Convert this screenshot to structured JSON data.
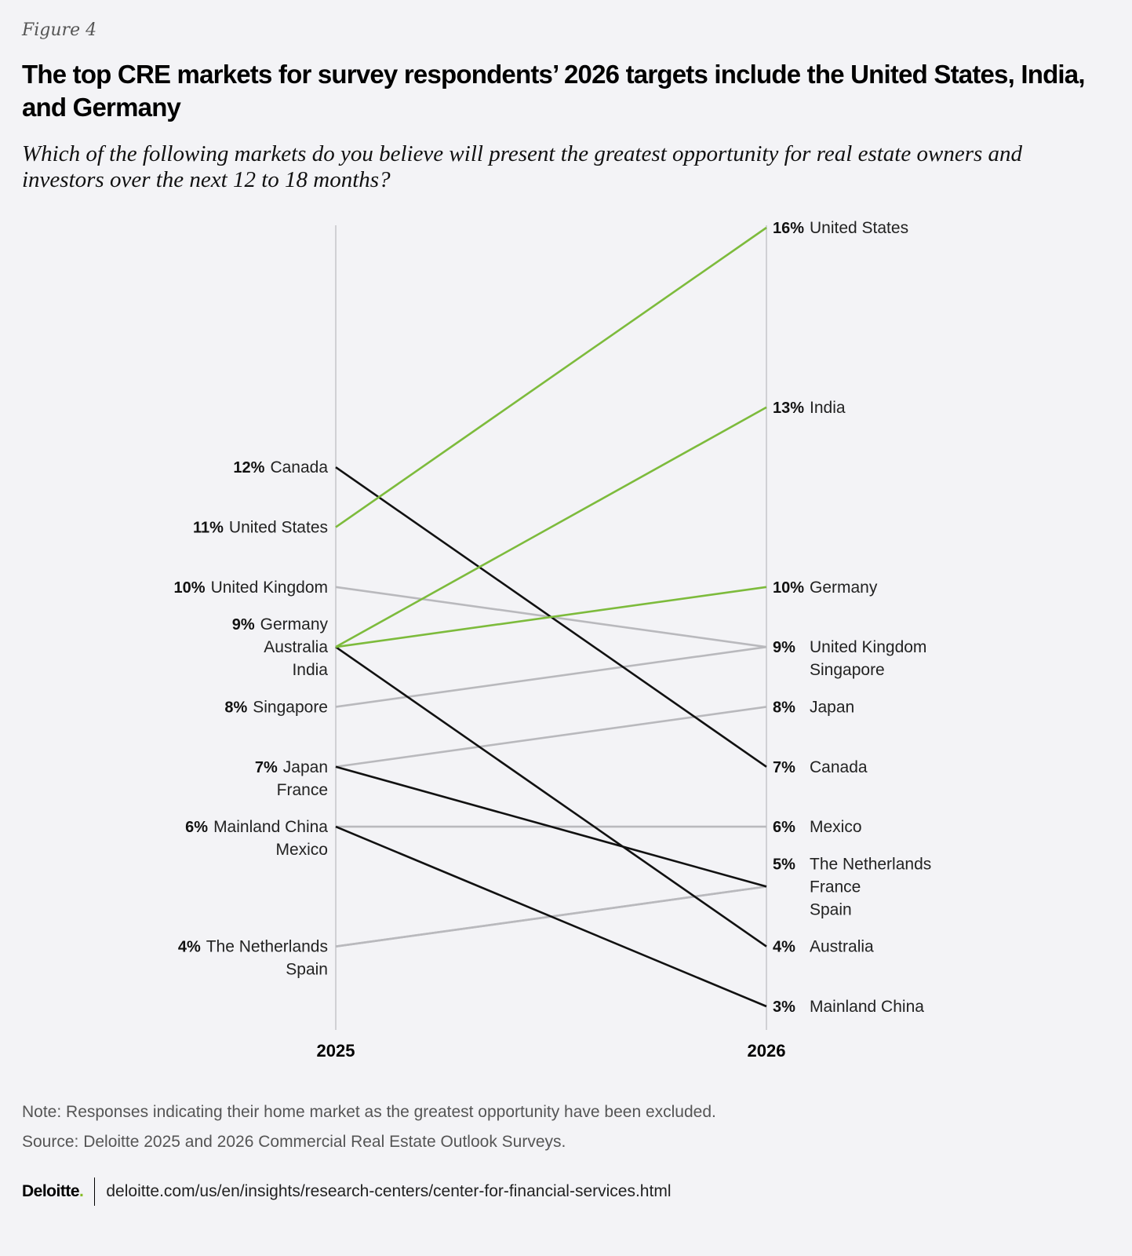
{
  "figure_label": "Figure 4",
  "title": "The top CRE markets for survey respondents’ 2026 targets include the United States, India, and Germany",
  "subtitle": "Which of the following markets do you believe will present the greatest opportunity for real estate owners and investors over the next 12 to 18 months?",
  "chart_data": {
    "type": "slope",
    "x": [
      "2025",
      "2026"
    ],
    "ylim": [
      3,
      16
    ],
    "unit": "%",
    "colors": {
      "highlight": "#7dbb3c",
      "decline": "#111111",
      "other": "#b9b9bd",
      "axis": "#c4c4c8"
    },
    "series": [
      {
        "name": "United States",
        "values": [
          11,
          16
        ],
        "color_group": "highlight"
      },
      {
        "name": "India",
        "values": [
          9,
          13
        ],
        "color_group": "highlight"
      },
      {
        "name": "Germany",
        "values": [
          9,
          10
        ],
        "color_group": "highlight"
      },
      {
        "name": "United Kingdom",
        "values": [
          10,
          9
        ],
        "color_group": "other"
      },
      {
        "name": "Singapore",
        "values": [
          8,
          9
        ],
        "color_group": "other"
      },
      {
        "name": "Japan",
        "values": [
          7,
          8
        ],
        "color_group": "other"
      },
      {
        "name": "Mexico",
        "values": [
          6,
          6
        ],
        "color_group": "other"
      },
      {
        "name": "The Netherlands",
        "values": [
          4,
          5
        ],
        "color_group": "other"
      },
      {
        "name": "Spain",
        "values": [
          4,
          5
        ],
        "color_group": "other"
      },
      {
        "name": "Canada",
        "values": [
          12,
          7
        ],
        "color_group": "decline"
      },
      {
        "name": "France",
        "values": [
          7,
          5
        ],
        "color_group": "decline"
      },
      {
        "name": "Australia",
        "values": [
          9,
          4
        ],
        "color_group": "decline"
      },
      {
        "name": "Mainland China",
        "values": [
          6,
          3
        ],
        "color_group": "decline"
      }
    ],
    "left_labels": [
      {
        "value": 12,
        "pct": "12%",
        "names": [
          "Canada"
        ]
      },
      {
        "value": 11,
        "pct": "11%",
        "names": [
          "United States"
        ]
      },
      {
        "value": 10,
        "pct": "10%",
        "names": [
          "United Kingdom"
        ]
      },
      {
        "value": 9,
        "pct": "9%",
        "names": [
          "Germany",
          "Australia",
          "India"
        ]
      },
      {
        "value": 8,
        "pct": "8%",
        "names": [
          "Singapore"
        ]
      },
      {
        "value": 7,
        "pct": "7%",
        "names": [
          "Japan",
          "France"
        ]
      },
      {
        "value": 6,
        "pct": "6%",
        "names": [
          "Mainland China",
          "Mexico"
        ]
      },
      {
        "value": 4,
        "pct": "4%",
        "names": [
          "The Netherlands",
          "Spain"
        ]
      }
    ],
    "right_labels": [
      {
        "value": 16,
        "pct": "16%",
        "names": [
          "United States"
        ]
      },
      {
        "value": 13,
        "pct": "13%",
        "names": [
          "India"
        ]
      },
      {
        "value": 10,
        "pct": "10%",
        "names": [
          "Germany"
        ]
      },
      {
        "value": 9,
        "pct": "9%",
        "names": [
          "United Kingdom",
          "Singapore"
        ]
      },
      {
        "value": 8,
        "pct": "8%",
        "names": [
          "Japan"
        ]
      },
      {
        "value": 7,
        "pct": "7%",
        "names": [
          "Canada"
        ]
      },
      {
        "value": 6,
        "pct": "6%",
        "names": [
          "Mexico"
        ]
      },
      {
        "value": 5,
        "pct": "5%",
        "names": [
          "The Netherlands",
          "France",
          "Spain"
        ]
      },
      {
        "value": 4,
        "pct": "4%",
        "names": [
          "Australia"
        ]
      },
      {
        "value": 3,
        "pct": "3%",
        "names": [
          "Mainland China"
        ]
      }
    ]
  },
  "note": "Note: Responses indicating their home market as the greatest opportunity have been excluded.",
  "source": "Source: Deloitte 2025 and 2026 Commercial Real Estate Outlook Surveys.",
  "footer": {
    "logo": "Deloitte",
    "logo_dot": ".",
    "url": "deloitte.com/us/en/insights/research-centers/center-for-financial-services.html"
  }
}
